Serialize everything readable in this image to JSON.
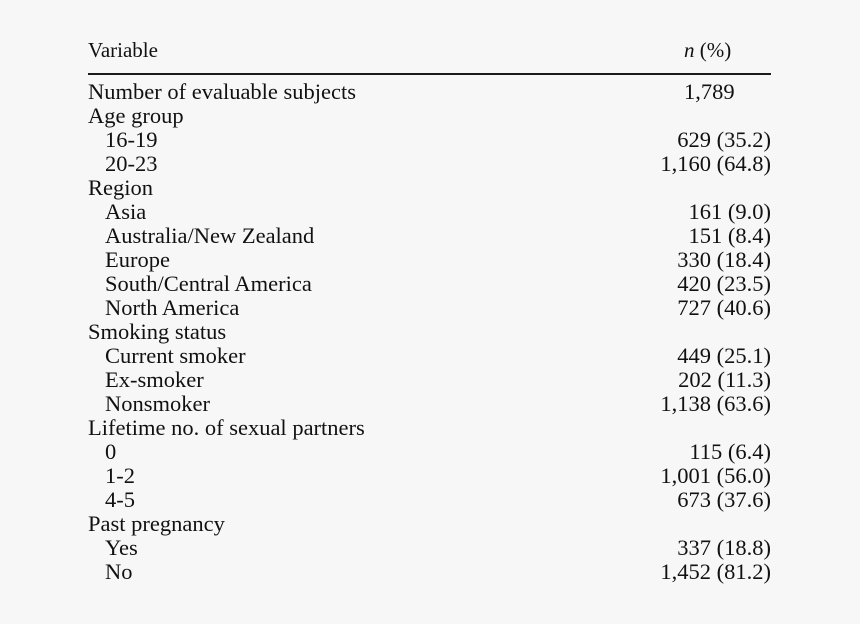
{
  "header": {
    "variable": "Variable",
    "n_italic": "n",
    "pct": " (%)"
  },
  "rows": [
    {
      "label": "Number of evaluable subjects",
      "value": "1,789",
      "type": "top"
    },
    {
      "label": "Age group",
      "value": "",
      "type": "group"
    },
    {
      "label": "16-19",
      "value": "629 (35.2)",
      "type": "sub"
    },
    {
      "label": "20-23",
      "value": "1,160 (64.8)",
      "type": "sub"
    },
    {
      "label": "Region",
      "value": "",
      "type": "group"
    },
    {
      "label": "Asia",
      "value": "161 (9.0)",
      "type": "sub"
    },
    {
      "label": "Australia/New Zealand",
      "value": "151 (8.4)",
      "type": "sub"
    },
    {
      "label": "Europe",
      "value": "330 (18.4)",
      "type": "sub"
    },
    {
      "label": "South/Central America",
      "value": "420 (23.5)",
      "type": "sub"
    },
    {
      "label": "North America",
      "value": "727 (40.6)",
      "type": "sub"
    },
    {
      "label": "Smoking status",
      "value": "",
      "type": "group"
    },
    {
      "label": "Current smoker",
      "value": "449 (25.1)",
      "type": "sub"
    },
    {
      "label": "Ex-smoker",
      "value": "202 (11.3)",
      "type": "sub"
    },
    {
      "label": "Nonsmoker",
      "value": "1,138 (63.6)",
      "type": "sub"
    },
    {
      "label": "Lifetime no. of sexual partners",
      "value": "",
      "type": "group"
    },
    {
      "label": "0",
      "value": "115 (6.4)",
      "type": "sub"
    },
    {
      "label": "1-2",
      "value": "1,001 (56.0)",
      "type": "sub"
    },
    {
      "label": "4-5",
      "value": "673 (37.6)",
      "type": "sub"
    },
    {
      "label": "Past pregnancy",
      "value": "",
      "type": "group"
    },
    {
      "label": "Yes",
      "value": "337 (18.8)",
      "type": "sub"
    },
    {
      "label": "No",
      "value": "1,452 (81.2)",
      "type": "sub"
    }
  ]
}
